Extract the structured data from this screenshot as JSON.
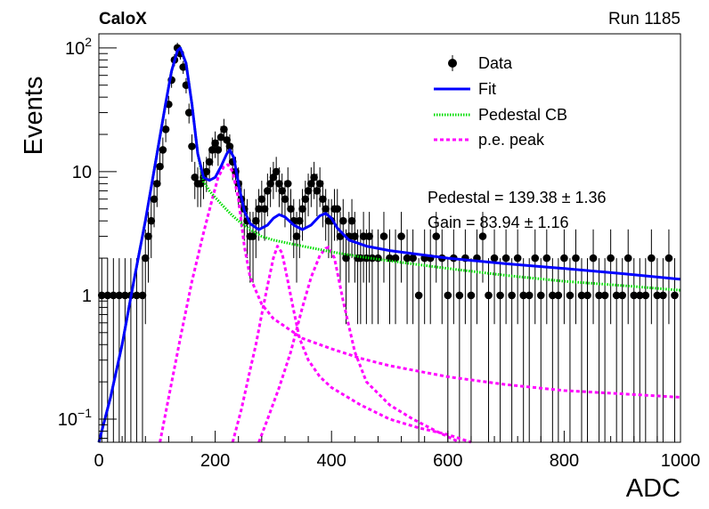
{
  "header": {
    "experiment": "CaloX",
    "run": "Run 1185"
  },
  "chart_data": {
    "type": "scatter",
    "xlabel": "ADC",
    "ylabel": "Events",
    "xlim": [
      0,
      1000
    ],
    "ylim": [
      0.065,
      130
    ],
    "yscale": "log",
    "x_ticks": [
      "0",
      "200",
      "400",
      "600",
      "800",
      "1000"
    ],
    "y_ticks": [
      {
        "value": 0.1,
        "base": "10",
        "exp": "−1"
      },
      {
        "value": 1,
        "label": "1"
      },
      {
        "value": 10,
        "label": "10"
      },
      {
        "value": 100,
        "base": "10",
        "exp": "2"
      }
    ],
    "legend": {
      "position": "top-right",
      "entries": [
        {
          "label": "Data",
          "kind": "marker"
        },
        {
          "label": "Fit",
          "kind": "solid"
        },
        {
          "label": "Pedestal CB",
          "kind": "dotted"
        },
        {
          "label": "p.e. peak",
          "kind": "dashed"
        }
      ]
    },
    "annotations": [
      "Pedestal = 139.38 ± 1.36",
      "Gain = 83.94 ± 1.16"
    ],
    "colors": {
      "data": "#000000",
      "fit": "#0000ff",
      "pedestal": "#00dd00",
      "pe_peak": "#ff00ff"
    },
    "series": [
      {
        "name": "Data",
        "kind": "points",
        "x": [
          5,
          15,
          25,
          35,
          45,
          55,
          65,
          75,
          80,
          85,
          90,
          95,
          100,
          105,
          110,
          115,
          120,
          125,
          130,
          135,
          140,
          145,
          150,
          155,
          160,
          165,
          170,
          175,
          180,
          185,
          190,
          195,
          200,
          205,
          210,
          215,
          220,
          225,
          230,
          235,
          240,
          245,
          250,
          255,
          260,
          265,
          270,
          275,
          280,
          285,
          290,
          295,
          300,
          305,
          310,
          315,
          320,
          325,
          330,
          335,
          340,
          345,
          350,
          355,
          360,
          365,
          370,
          375,
          380,
          385,
          390,
          395,
          400,
          405,
          410,
          415,
          420,
          425,
          430,
          435,
          440,
          445,
          450,
          455,
          460,
          465,
          470,
          480,
          490,
          500,
          510,
          520,
          530,
          540,
          550,
          560,
          570,
          580,
          590,
          600,
          610,
          620,
          630,
          640,
          650,
          660,
          670,
          680,
          690,
          700,
          710,
          720,
          730,
          740,
          750,
          760,
          770,
          780,
          790,
          800,
          810,
          820,
          830,
          840,
          850,
          860,
          870,
          880,
          890,
          900,
          910,
          920,
          930,
          940,
          950,
          960,
          970,
          980,
          990
        ],
        "y": [
          1,
          1,
          1,
          1,
          1,
          1,
          1,
          1,
          2,
          3,
          4,
          6,
          8,
          11,
          15,
          22,
          35,
          55,
          80,
          100,
          90,
          70,
          50,
          30,
          16,
          9,
          8,
          8,
          9,
          10,
          12,
          15,
          17,
          15,
          19,
          22,
          18,
          16,
          12,
          10,
          8,
          6,
          5,
          4,
          3,
          3,
          4,
          5,
          6,
          5,
          7,
          8,
          9,
          10,
          8,
          7,
          6,
          8,
          5,
          4,
          3,
          4,
          5,
          6,
          7,
          8,
          9,
          7,
          8,
          6,
          5,
          4,
          4,
          5,
          5,
          3,
          4,
          2,
          3,
          4,
          3,
          2,
          2,
          3,
          2,
          3,
          2,
          2,
          3,
          2,
          2,
          3,
          2,
          2,
          1,
          2,
          2,
          3,
          2,
          1,
          2,
          1,
          2,
          1,
          2,
          3,
          1,
          2,
          1,
          2,
          1,
          2,
          1,
          1,
          2,
          1,
          2,
          1,
          1,
          2,
          1,
          2,
          1,
          1,
          2,
          1,
          1,
          2,
          1,
          1,
          2,
          1,
          1,
          1,
          2,
          1,
          1,
          2,
          1
        ]
      },
      {
        "name": "Fit",
        "kind": "solid",
        "x": [
          0,
          20,
          40,
          60,
          80,
          100,
          115,
          125,
          135,
          140,
          150,
          160,
          170,
          180,
          190,
          200,
          210,
          220,
          225,
          232,
          240,
          250,
          260,
          275,
          290,
          300,
          310,
          320,
          335,
          350,
          365,
          380,
          390,
          400,
          410,
          430,
          460,
          500,
          600,
          700,
          800,
          900,
          1000
        ],
        "y": [
          0.065,
          0.15,
          0.4,
          1.3,
          4,
          14,
          36,
          65,
          95,
          100,
          75,
          35,
          14,
          9,
          8.5,
          9,
          11,
          14,
          15,
          13,
          8,
          4.8,
          3.8,
          3.4,
          3.7,
          4.2,
          4.5,
          4.3,
          3.7,
          3.4,
          3.7,
          4.4,
          4.6,
          4.2,
          3.5,
          2.8,
          2.5,
          2.3,
          2.0,
          1.8,
          1.65,
          1.5,
          1.35
        ]
      },
      {
        "name": "Pedestal CB",
        "kind": "dotted",
        "x": [
          0,
          20,
          40,
          60,
          80,
          100,
          115,
          125,
          135,
          140,
          150,
          160,
          170,
          180,
          190,
          200,
          210,
          220,
          230,
          240,
          260,
          280,
          300,
          350,
          400,
          450,
          500,
          600,
          700,
          800,
          900,
          1000
        ],
        "y": [
          0.065,
          0.15,
          0.4,
          1.3,
          4,
          14,
          36,
          65,
          95,
          100,
          75,
          35,
          14,
          8.3,
          7,
          6.2,
          5.5,
          4.9,
          4.4,
          4.0,
          3.4,
          3.0,
          2.8,
          2.5,
          2.25,
          2.05,
          1.9,
          1.65,
          1.45,
          1.3,
          1.2,
          1.1
        ]
      },
      {
        "name": "p.e. peak 1",
        "kind": "dashed",
        "x": [
          105,
          120,
          140,
          160,
          180,
          195,
          205,
          215,
          222,
          230,
          240,
          250,
          260,
          280,
          300,
          350,
          400,
          450,
          500,
          600,
          700,
          800,
          900,
          1000
        ],
        "y": [
          0.065,
          0.15,
          0.45,
          1.3,
          3.2,
          6,
          9,
          11,
          11.4,
          10,
          6,
          2.5,
          1.4,
          0.85,
          0.65,
          0.45,
          0.37,
          0.31,
          0.27,
          0.22,
          0.19,
          0.17,
          0.16,
          0.15
        ]
      },
      {
        "name": "p.e. peak 2",
        "kind": "dashed",
        "x": [
          230,
          245,
          260,
          270,
          280,
          290,
          300,
          307,
          315,
          325,
          335,
          345,
          360,
          380,
          400,
          450,
          500,
          550,
          600,
          640
        ],
        "y": [
          0.065,
          0.12,
          0.25,
          0.4,
          0.7,
          1.2,
          2.0,
          2.5,
          2.2,
          1.3,
          0.75,
          0.45,
          0.3,
          0.22,
          0.18,
          0.13,
          0.1,
          0.085,
          0.075,
          0.065
        ]
      },
      {
        "name": "p.e. peak 3",
        "kind": "dashed",
        "x": [
          275,
          290,
          310,
          330,
          350,
          365,
          380,
          390,
          395,
          405,
          420,
          440,
          460,
          500,
          540,
          580,
          620
        ],
        "y": [
          0.065,
          0.1,
          0.18,
          0.35,
          0.8,
          1.4,
          2.1,
          2.4,
          2.45,
          2.0,
          0.9,
          0.35,
          0.2,
          0.13,
          0.1,
          0.08,
          0.065
        ]
      }
    ]
  }
}
